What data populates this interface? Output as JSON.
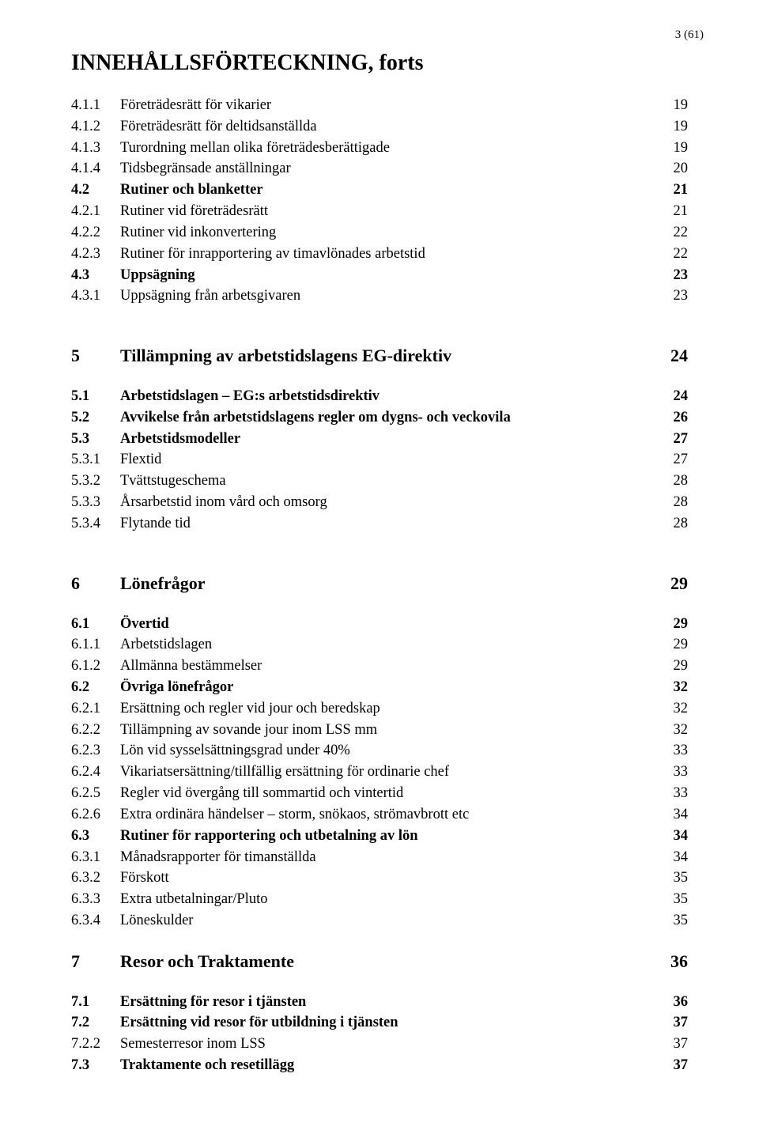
{
  "page_number_label": "3 (61)",
  "doc_title": "INNEHÅLLSFÖRTECKNING, forts",
  "colors": {
    "background": "#ffffff",
    "text": "#000000"
  },
  "typography": {
    "family": "Times New Roman",
    "title_fontsize_pt": 21,
    "section_fontsize_pt": 17,
    "body_fontsize_pt": 14
  },
  "toc": [
    {
      "type": "row",
      "num": "4.1.1",
      "text": "Företrädesrätt för vikarier",
      "page": "19",
      "bold": false
    },
    {
      "type": "row",
      "num": "4.1.2",
      "text": "Företrädesrätt för deltidsanställda",
      "page": "19",
      "bold": false
    },
    {
      "type": "row",
      "num": "4.1.3",
      "text": "Turordning mellan olika företrädesberättigade",
      "page": "19",
      "bold": false
    },
    {
      "type": "row",
      "num": "4.1.4",
      "text": "Tidsbegränsade anställningar",
      "page": "20",
      "bold": false
    },
    {
      "type": "row",
      "num": "4.2",
      "text": "Rutiner och blanketter",
      "page": "21",
      "bold": true
    },
    {
      "type": "row",
      "num": "4.2.1",
      "text": "Rutiner vid företrädesrätt",
      "page": "21",
      "bold": false
    },
    {
      "type": "row",
      "num": "4.2.2",
      "text": "Rutiner vid inkonvertering",
      "page": "22",
      "bold": false
    },
    {
      "type": "row",
      "num": "4.2.3",
      "text": "Rutiner för inrapportering av timavlönades arbetstid",
      "page": "22",
      "bold": false
    },
    {
      "type": "row",
      "num": "4.3",
      "text": "Uppsägning",
      "page": "23",
      "bold": true
    },
    {
      "type": "row",
      "num": "4.3.1",
      "text": "Uppsägning från arbetsgivaren",
      "page": "23",
      "bold": false
    },
    {
      "type": "gap",
      "size": "xlarge"
    },
    {
      "type": "section",
      "num": "5",
      "text": "Tillämpning av arbetstidslagens EG-direktiv",
      "page": "24"
    },
    {
      "type": "gap",
      "size": "med"
    },
    {
      "type": "row",
      "num": "5.1",
      "text": "Arbetstidslagen – EG:s arbetstidsdirektiv",
      "page": "24",
      "bold": true
    },
    {
      "type": "row",
      "num": "5.2",
      "text": "Avvikelse från arbetstidslagens regler om dygns- och veckovila",
      "page": "26",
      "bold": true
    },
    {
      "type": "row",
      "num": "5.3",
      "text": "Arbetstidsmodeller",
      "page": "27",
      "bold": true
    },
    {
      "type": "row",
      "num": "5.3.1",
      "text": "Flextid",
      "page": "27",
      "bold": false
    },
    {
      "type": "row",
      "num": "5.3.2",
      "text": "Tvättstugeschema",
      "page": "28",
      "bold": false
    },
    {
      "type": "row",
      "num": "5.3.3",
      "text": "Årsarbetstid inom vård och omsorg",
      "page": "28",
      "bold": false
    },
    {
      "type": "row",
      "num": "5.3.4",
      "text": "Flytande tid",
      "page": "28",
      "bold": false
    },
    {
      "type": "gap",
      "size": "xlarge"
    },
    {
      "type": "section",
      "num": "6",
      "text": "Lönefrågor",
      "page": "29"
    },
    {
      "type": "gap",
      "size": "med"
    },
    {
      "type": "row",
      "num": "6.1",
      "text": "Övertid",
      "page": "29",
      "bold": true
    },
    {
      "type": "row",
      "num": "6.1.1",
      "text": "Arbetstidslagen",
      "page": "29",
      "bold": false
    },
    {
      "type": "row",
      "num": "6.1.2",
      "text": "Allmänna bestämmelser",
      "page": "29",
      "bold": false
    },
    {
      "type": "row",
      "num": "6.2",
      "text": "Övriga lönefrågor",
      "page": "32",
      "bold": true
    },
    {
      "type": "row",
      "num": "6.2.1",
      "text": "Ersättning och regler vid jour och beredskap",
      "page": "32",
      "bold": false
    },
    {
      "type": "row",
      "num": "6.2.2",
      "text": "Tillämpning av sovande jour inom LSS mm",
      "page": "32",
      "bold": false
    },
    {
      "type": "row",
      "num": "6.2.3",
      "text": "Lön vid sysselsättningsgrad under 40%",
      "page": "33",
      "bold": false
    },
    {
      "type": "row",
      "num": "6.2.4",
      "text": "Vikariatsersättning/tillfällig ersättning för ordinarie chef",
      "page": "33",
      "bold": false
    },
    {
      "type": "row",
      "num": "6.2.5",
      "text": "Regler vid övergång till sommartid och vintertid",
      "page": "33",
      "bold": false
    },
    {
      "type": "row",
      "num": "6.2.6",
      "text": "Extra ordinära händelser – storm, snökaos, strömavbrott etc",
      "page": "34",
      "bold": false
    },
    {
      "type": "row",
      "num": "6.3",
      "text": "Rutiner för rapportering och utbetalning av lön",
      "page": "34",
      "bold": true
    },
    {
      "type": "row",
      "num": "6.3.1",
      "text": "Månadsrapporter för timanställda",
      "page": "34",
      "bold": false
    },
    {
      "type": "row",
      "num": "6.3.2",
      "text": "Förskott",
      "page": "35",
      "bold": false
    },
    {
      "type": "row",
      "num": "6.3.3",
      "text": "Extra utbetalningar/Pluto",
      "page": "35",
      "bold": false
    },
    {
      "type": "row",
      "num": "6.3.4",
      "text": "Löneskulder",
      "page": "35",
      "bold": false
    },
    {
      "type": "gap",
      "size": "med"
    },
    {
      "type": "section",
      "num": "7",
      "text": "Resor och Traktamente",
      "page": "36"
    },
    {
      "type": "gap",
      "size": "med"
    },
    {
      "type": "row",
      "num": "7.1",
      "text": "Ersättning för resor i tjänsten",
      "page": "36",
      "bold": true
    },
    {
      "type": "row",
      "num": "7.2",
      "text": "Ersättning vid resor för utbildning i tjänsten",
      "page": "37",
      "bold": true
    },
    {
      "type": "row",
      "num": "7.2.2",
      "text": "Semesterresor inom LSS",
      "page": "37",
      "bold": false
    },
    {
      "type": "row",
      "num": "7.3",
      "text": "Traktamente och resetillägg",
      "page": "37",
      "bold": true
    }
  ]
}
